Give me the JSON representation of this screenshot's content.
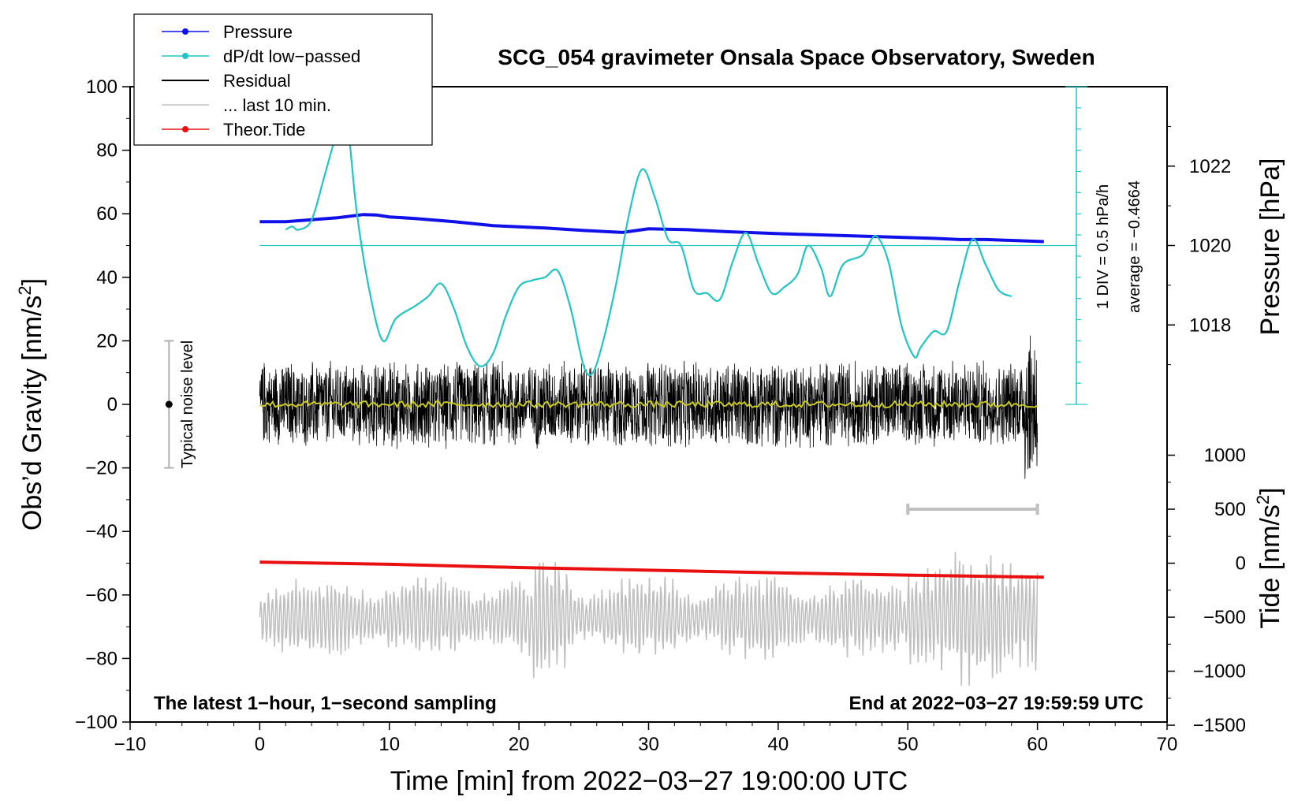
{
  "chart_data": {
    "type": "line",
    "title": "SCG_054 gravimeter Onsala Space Observatory, Sweden",
    "xlabel": "Time [min] from 2022−03−27 19:00:00 UTC",
    "ylabel_left": "Obs’d Gravity [nm/s",
    "ylabel_left_sup": "2",
    "ylabel_left_end": "]",
    "ylabel_right_top": "Pressure [hPa]",
    "ylabel_right_bottom": "Tide [nm/s",
    "ylabel_right_bottom_sup": "2",
    "ylabel_right_bottom_end": "]",
    "xlim": [
      -10,
      70
    ],
    "ylim": [
      -100,
      100
    ],
    "pressure_axis_ticks": [
      1018,
      1020,
      1022
    ],
    "tide_axis_ticks": [
      -1500,
      -1000,
      -500,
      0,
      500,
      1000
    ],
    "x_ticks": [
      -10,
      0,
      10,
      20,
      30,
      40,
      50,
      60,
      70
    ],
    "x_tick_labels": [
      "−10",
      "0",
      "10",
      "20",
      "30",
      "40",
      "50",
      "60",
      "70"
    ],
    "y_ticks": [
      -100,
      -80,
      -60,
      -40,
      -20,
      0,
      20,
      40,
      60,
      80,
      100
    ],
    "y_tick_labels": [
      "−100",
      "−80",
      "−60",
      "−40",
      "−20",
      "0",
      "20",
      "40",
      "60",
      "80",
      "100"
    ],
    "pressure_tick_labels": [
      "1018",
      "1020",
      "1022"
    ],
    "tide_tick_labels": [
      "−1500",
      "−1000",
      "−500",
      "0",
      "500",
      "1000"
    ],
    "legend": [
      {
        "label": "Pressure",
        "color": "#1010e8",
        "marker": true
      },
      {
        "label": "dP/dt low−passed",
        "color": "#22c4c4",
        "marker": true
      },
      {
        "label": "Residual",
        "color": "#000000",
        "marker": false
      },
      {
        "label": "... last 10 min.",
        "color": "#c0c0c0",
        "marker": false
      },
      {
        "label": "Theor.Tide",
        "color": "#e81010",
        "marker": true
      }
    ],
    "annotations": {
      "bottom_left": "The latest 1−hour, 1−second sampling",
      "bottom_right": "End at 2022−03−27 19:59:59 UTC",
      "noise_label": "Typical noise level",
      "div_label": "1 DIV = 0.5 hPa/h",
      "average_label": "average = −0.4664"
    },
    "noise_bar": {
      "x": -7,
      "y_center": 0,
      "y_low": -20,
      "y_high": 20
    },
    "pressure_series": {
      "name": "Pressure",
      "x": [
        0,
        2,
        4,
        6,
        8,
        9,
        10,
        12,
        15,
        18,
        20,
        22,
        25,
        28,
        30,
        33,
        36,
        40,
        44,
        48,
        52,
        54,
        56,
        58,
        60.5
      ],
      "values": [
        1020.6,
        1020.6,
        1020.65,
        1020.7,
        1020.78,
        1020.77,
        1020.72,
        1020.68,
        1020.6,
        1020.5,
        1020.47,
        1020.44,
        1020.38,
        1020.33,
        1020.42,
        1020.4,
        1020.35,
        1020.3,
        1020.26,
        1020.22,
        1020.18,
        1020.15,
        1020.15,
        1020.13,
        1020.1
      ]
    },
    "dpdt_series": {
      "name": "dP/dt low−passed (in gravity-axis units)",
      "x": [
        2,
        2.5,
        3,
        4,
        5,
        6,
        6.7,
        7.5,
        8.5,
        9.5,
        10.5,
        12,
        13,
        14,
        15,
        16,
        17,
        18,
        19,
        20,
        21,
        22,
        23,
        24,
        25,
        25.7,
        26.5,
        27.5,
        28.5,
        29.5,
        30.5,
        31.5,
        32.5,
        33.5,
        34.5,
        35.5,
        36.5,
        37.5,
        38.5,
        39.5,
        40.5,
        41.5,
        42.3,
        43.3,
        44,
        45,
        46.5,
        47.5,
        48.5,
        49.5,
        50.5,
        51,
        52,
        53,
        54,
        55,
        56,
        57,
        58
      ],
      "values": [
        55,
        56,
        55,
        58,
        72,
        86,
        90,
        60,
        35,
        20,
        27,
        31,
        34,
        38,
        30,
        18,
        12,
        16,
        28,
        37,
        39,
        40,
        42,
        30,
        12,
        10,
        20,
        38,
        60,
        74,
        65,
        52,
        50,
        36,
        35,
        33,
        45,
        54,
        44,
        35,
        37,
        41,
        50,
        43,
        34,
        44,
        47,
        53,
        45,
        25,
        15,
        18,
        23,
        23,
        39,
        52,
        44,
        36,
        34
      ]
    },
    "residual_series": {
      "name": "Residual",
      "x_range": [
        0,
        60
      ],
      "amplitude_typical": 10,
      "amplitude_max": 25
    },
    "residual_smoothed": {
      "name": "Residual (smoothed)",
      "color": "#c8c820",
      "value": 0
    },
    "tide_series": {
      "name": "Theor.Tide",
      "x": [
        0,
        10,
        20,
        30,
        40,
        50,
        60.5
      ],
      "values": [
        10,
        -10,
        -40,
        -65,
        -90,
        -110,
        -130
      ]
    },
    "last10_series": {
      "name": "... last 10 min. (gravity-axis units)",
      "x_range": [
        0,
        60
      ],
      "center": -67,
      "amplitude_typical": 11,
      "amplitude_max": 27
    },
    "last10_bar": {
      "x_start": 50,
      "x_end": 60,
      "y": -33
    },
    "dpdt_scale": {
      "x": 63,
      "y_top": 100,
      "y_bottom": 0,
      "div_count": 15,
      "baseline_y": 50
    }
  }
}
